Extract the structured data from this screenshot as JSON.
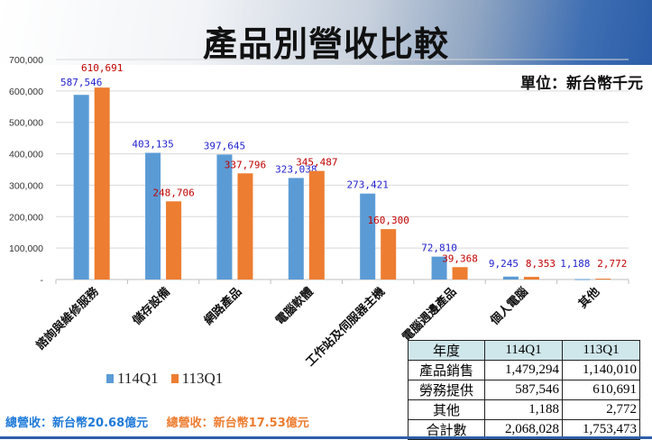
{
  "title": "產品別營收比較",
  "unit": "單位：新台幣千元",
  "chart_data": {
    "type": "bar",
    "categories": [
      "諮詢與維修服務",
      "儲存設備",
      "網路產品",
      "電腦軟體",
      "工作站及伺服器主機",
      "電腦週邊產品",
      "個人電腦",
      "其他"
    ],
    "series": [
      {
        "name": "114Q1",
        "color": "#5b9bd5",
        "label_color": "#1f1fcf",
        "values": [
          587546,
          403135,
          397645,
          323038,
          273421,
          72810,
          9245,
          1188
        ],
        "labels": [
          "587,546",
          "403,135",
          "397,645",
          "323,038",
          "273,421",
          "72,810",
          "9,245",
          "1,188"
        ]
      },
      {
        "name": "113Q1",
        "color": "#ed7d31",
        "label_color": "#c00000",
        "values": [
          610691,
          248706,
          337796,
          345487,
          160300,
          39368,
          8353,
          2772
        ],
        "labels": [
          "610,691",
          "248,706",
          "337,796",
          "345,487",
          "160,300",
          "39,368",
          "8,353",
          "2,772"
        ]
      }
    ],
    "ylim": [
      0,
      700000
    ],
    "yticks": [
      "-",
      "100,000",
      "200,000",
      "300,000",
      "400,000",
      "500,000",
      "600,000",
      "700,000"
    ],
    "grid": true,
    "legend": "bottom-left"
  },
  "totals": {
    "q114": "總營收：新台幣20.68億元",
    "q113": "總營收：新台幣17.53億元"
  },
  "table": {
    "header": [
      "年度",
      "114Q1",
      "113Q1"
    ],
    "rows": [
      [
        "產品銷售",
        "1,479,294",
        "1,140,010"
      ],
      [
        "勞務提供",
        "587,546",
        "610,691"
      ],
      [
        "其他",
        "1,188",
        "2,772"
      ],
      [
        "合計數",
        "2,068,028",
        "1,753,473"
      ]
    ]
  }
}
